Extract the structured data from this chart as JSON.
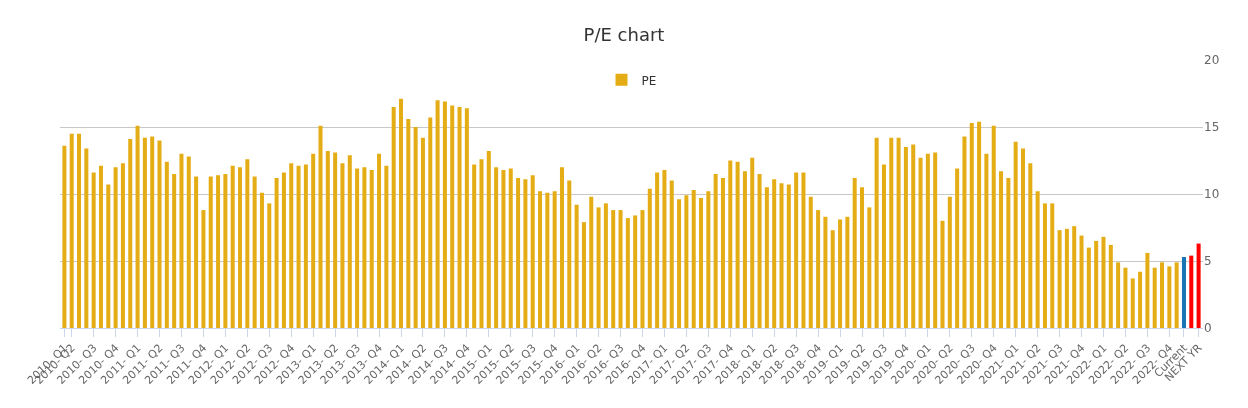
{
  "chart_data": {
    "type": "bar",
    "title": "P/E chart",
    "categories": [
      "2010- Q1",
      "2010- Q2",
      null,
      null,
      "2010- Q3",
      null,
      null,
      "2010- Q4",
      null,
      null,
      "2011- Q1",
      null,
      null,
      "2011- Q2",
      null,
      null,
      "2011- Q3",
      null,
      null,
      "2011- Q4",
      null,
      null,
      "2012- Q1",
      null,
      null,
      "2012- Q2",
      null,
      null,
      "2012- Q3",
      null,
      null,
      "2012- Q4",
      null,
      null,
      "2013- Q1",
      null,
      null,
      "2013- Q2",
      null,
      null,
      "2013- Q3",
      null,
      null,
      "2013- Q4",
      null,
      null,
      "2014- Q1",
      null,
      null,
      "2014- Q2",
      null,
      null,
      "2014- Q3",
      null,
      null,
      "2014- Q4",
      null,
      null,
      "2015- Q1",
      null,
      null,
      "2015- Q2",
      null,
      null,
      "2015- Q3",
      null,
      null,
      "2015- Q4",
      null,
      null,
      "2016- Q1",
      null,
      null,
      "2016- Q2",
      null,
      null,
      "2016- Q3",
      null,
      null,
      "2016- Q4",
      null,
      null,
      "2017- Q1",
      null,
      null,
      "2017- Q2",
      null,
      null,
      "2017- Q3",
      null,
      null,
      "2017- Q4",
      null,
      null,
      "2018- Q1",
      null,
      null,
      "2018- Q2",
      null,
      null,
      "2018- Q3",
      null,
      null,
      "2018- Q4",
      null,
      null,
      "2019- Q1",
      null,
      null,
      "2019- Q2",
      null,
      null,
      "2019- Q3",
      null,
      null,
      "2019- Q4",
      null,
      null,
      "2020- Q1",
      null,
      null,
      "2020- Q2",
      null,
      null,
      "2020- Q3",
      null,
      null,
      "2020- Q4",
      null,
      null,
      "2021- Q1",
      null,
      null,
      "2021- Q2",
      null,
      null,
      "2021- Q3",
      null,
      null,
      "2021- Q4",
      null,
      null,
      "2022- Q1",
      null,
      null,
      "2022- Q2",
      null,
      null,
      "2022- Q3",
      null,
      null,
      "2022- Q4",
      null,
      "Current",
      null,
      "NEXT YR"
    ],
    "series": [
      {
        "name": "PE",
        "values": [
          13.6,
          14.5,
          14.5,
          13.4,
          11.6,
          12.1,
          10.7,
          12.0,
          12.3,
          14.1,
          15.1,
          14.2,
          14.3,
          14.0,
          12.4,
          11.5,
          13.0,
          12.8,
          11.3,
          8.8,
          11.3,
          11.4,
          11.5,
          12.1,
          12.0,
          12.6,
          11.3,
          10.1,
          9.3,
          11.2,
          11.6,
          12.3,
          12.1,
          12.2,
          13.0,
          15.1,
          13.2,
          13.1,
          12.3,
          12.9,
          11.9,
          12.0,
          11.8,
          13.0,
          12.1,
          16.5,
          17.1,
          15.6,
          15.0,
          14.2,
          15.7,
          17.0,
          16.9,
          16.6,
          16.5,
          16.4,
          12.2,
          12.6,
          13.2,
          12.0,
          11.8,
          11.9,
          11.2,
          11.1,
          11.4,
          10.2,
          10.1,
          10.2,
          12.0,
          11.0,
          9.2,
          7.9,
          9.8,
          9.0,
          9.3,
          8.8,
          8.8,
          8.2,
          8.4,
          8.8,
          10.4,
          11.6,
          11.8,
          11.0,
          9.6,
          9.9,
          10.3,
          9.7,
          10.2,
          11.5,
          11.2,
          12.5,
          12.4,
          11.7,
          12.7,
          11.5,
          10.5,
          11.1,
          10.8,
          10.7,
          11.6,
          11.6,
          9.8,
          8.8,
          8.3,
          7.3,
          8.1,
          8.3,
          11.2,
          10.5,
          9.0,
          14.2,
          12.2,
          14.2,
          14.2,
          13.5,
          13.7,
          12.7,
          13.0,
          13.1,
          8.0,
          9.8,
          11.9,
          14.3,
          15.3,
          15.4,
          13.0,
          15.1,
          11.7,
          11.2,
          13.9,
          13.4,
          12.3,
          10.2,
          9.3,
          9.3,
          7.3,
          7.4,
          7.6,
          6.9,
          6.0,
          6.5,
          6.8,
          6.2,
          4.9,
          4.5,
          3.7,
          4.2,
          5.6,
          4.5,
          4.9,
          4.6,
          4.9,
          5.3,
          5.4,
          6.3
        ],
        "colors": [
          "#e5ad15",
          "#e5ad15",
          "#e5ad15",
          "#e5ad15",
          "#e5ad15",
          "#e5ad15",
          "#e5ad15",
          "#e5ad15",
          "#e5ad15",
          "#e5ad15",
          "#e5ad15",
          "#e5ad15",
          "#e5ad15",
          "#e5ad15",
          "#e5ad15",
          "#e5ad15",
          "#e5ad15",
          "#e5ad15",
          "#e5ad15",
          "#e5ad15",
          "#e5ad15",
          "#e5ad15",
          "#e5ad15",
          "#e5ad15",
          "#e5ad15",
          "#e5ad15",
          "#e5ad15",
          "#e5ad15",
          "#e5ad15",
          "#e5ad15",
          "#e5ad15",
          "#e5ad15",
          "#e5ad15",
          "#e5ad15",
          "#e5ad15",
          "#e5ad15",
          "#e5ad15",
          "#e5ad15",
          "#e5ad15",
          "#e5ad15",
          "#e5ad15",
          "#e5ad15",
          "#e5ad15",
          "#e5ad15",
          "#e5ad15",
          "#e5ad15",
          "#e5ad15",
          "#e5ad15",
          "#e5ad15",
          "#e5ad15",
          "#e5ad15",
          "#e5ad15",
          "#e5ad15",
          "#e5ad15",
          "#e5ad15",
          "#e5ad15",
          "#e5ad15",
          "#e5ad15",
          "#e5ad15",
          "#e5ad15",
          "#e5ad15",
          "#e5ad15",
          "#e5ad15",
          "#e5ad15",
          "#e5ad15",
          "#e5ad15",
          "#e5ad15",
          "#e5ad15",
          "#e5ad15",
          "#e5ad15",
          "#e5ad15",
          "#e5ad15",
          "#e5ad15",
          "#e5ad15",
          "#e5ad15",
          "#e5ad15",
          "#e5ad15",
          "#e5ad15",
          "#e5ad15",
          "#e5ad15",
          "#e5ad15",
          "#e5ad15",
          "#e5ad15",
          "#e5ad15",
          "#e5ad15",
          "#e5ad15",
          "#e5ad15",
          "#e5ad15",
          "#e5ad15",
          "#e5ad15",
          "#e5ad15",
          "#e5ad15",
          "#e5ad15",
          "#e5ad15",
          "#e5ad15",
          "#e5ad15",
          "#e5ad15",
          "#e5ad15",
          "#e5ad15",
          "#e5ad15",
          "#e5ad15",
          "#e5ad15",
          "#e5ad15",
          "#e5ad15",
          "#e5ad15",
          "#e5ad15",
          "#e5ad15",
          "#e5ad15",
          "#e5ad15",
          "#e5ad15",
          "#e5ad15",
          "#e5ad15",
          "#e5ad15",
          "#e5ad15",
          "#e5ad15",
          "#e5ad15",
          "#e5ad15",
          "#e5ad15",
          "#e5ad15",
          "#e5ad15",
          "#e5ad15",
          "#e5ad15",
          "#e5ad15",
          "#e5ad15",
          "#e5ad15",
          "#e5ad15",
          "#e5ad15",
          "#e5ad15",
          "#e5ad15",
          "#e5ad15",
          "#e5ad15",
          "#e5ad15",
          "#e5ad15",
          "#e5ad15",
          "#e5ad15",
          "#e5ad15",
          "#e5ad15",
          "#e5ad15",
          "#e5ad15",
          "#e5ad15",
          "#e5ad15",
          "#e5ad15",
          "#e5ad15",
          "#e5ad15",
          "#e5ad15",
          "#e5ad15",
          "#e5ad15",
          "#e5ad15",
          "#e5ad15",
          "#e5ad15",
          "#e5ad15",
          "#e5ad15",
          "#e5ad15",
          "#1a75b5",
          "#ff0000",
          "#ff0000"
        ]
      }
    ],
    "ylim": [
      0,
      20
    ],
    "yticks": [
      0,
      5,
      10,
      15,
      20
    ],
    "grid": "y",
    "legend": "top"
  }
}
